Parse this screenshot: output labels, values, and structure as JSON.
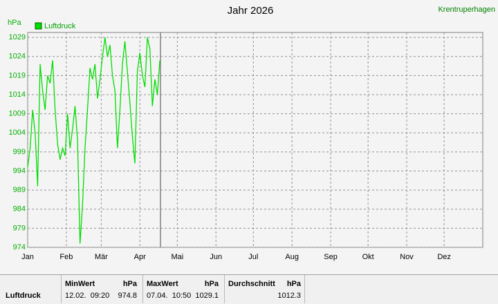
{
  "station": "Krentruperhagen",
  "chart_data": {
    "type": "line",
    "title": "Jahr 2026",
    "ylabel": "hPa",
    "x": [
      0,
      2,
      4,
      6,
      8,
      10,
      12,
      14,
      16,
      18,
      20,
      22,
      24,
      26,
      28,
      30,
      32,
      34,
      36,
      38,
      40,
      42,
      44,
      46,
      48,
      50,
      52,
      54,
      56,
      58,
      60,
      62,
      64,
      66,
      68,
      70,
      72,
      74,
      76,
      78,
      80,
      82,
      84,
      86,
      88,
      90,
      92,
      94,
      96,
      98,
      100,
      102,
      104,
      106
    ],
    "series": [
      {
        "name": "Luftdruck",
        "color": "#00dd00",
        "values": [
          995,
          1000,
          1010,
          1004,
          990,
          1022,
          1015,
          1010,
          1019,
          1017,
          1023,
          1010,
          1001,
          997,
          1000,
          998,
          1009,
          1000,
          1005,
          1011,
          1002,
          975,
          985,
          1000,
          1010,
          1021,
          1018,
          1022,
          1013,
          1018,
          1024,
          1029,
          1024,
          1027,
          1019,
          1015,
          1000,
          1010,
          1022,
          1028,
          1020,
          1012,
          1003,
          996,
          1020,
          1025,
          1019,
          1016,
          1029,
          1026,
          1011,
          1018,
          1014,
          1023
        ]
      }
    ],
    "xlim": [
      0,
      365
    ],
    "xticks": [
      {
        "value": 0,
        "label": "Jan"
      },
      {
        "value": 31,
        "label": "Feb"
      },
      {
        "value": 59,
        "label": "Mär"
      },
      {
        "value": 90,
        "label": "Apr"
      },
      {
        "value": 120,
        "label": "Mai"
      },
      {
        "value": 151,
        "label": "Jun"
      },
      {
        "value": 181,
        "label": "Jul"
      },
      {
        "value": 212,
        "label": "Aug"
      },
      {
        "value": 243,
        "label": "Sep"
      },
      {
        "value": 273,
        "label": "Okt"
      },
      {
        "value": 304,
        "label": "Nov"
      },
      {
        "value": 334,
        "label": "Dez"
      }
    ],
    "ylim": [
      974,
      1030.3
    ],
    "yticks": [
      974,
      979,
      984,
      989,
      994,
      999,
      1004,
      1009,
      1014,
      1019,
      1024,
      1029
    ],
    "grid": true
  },
  "table": {
    "row_label": "Luftdruck",
    "columns": [
      {
        "header": "MinWert",
        "unit": "hPa",
        "time": "12.02.  09:20",
        "value": 974.8
      },
      {
        "header": "MaxWert",
        "unit": "hPa",
        "time": "07.04.  10:50",
        "value": 1029.1
      },
      {
        "header": "Durchschnitt",
        "unit": "hPa",
        "value": 1012.3
      }
    ]
  }
}
